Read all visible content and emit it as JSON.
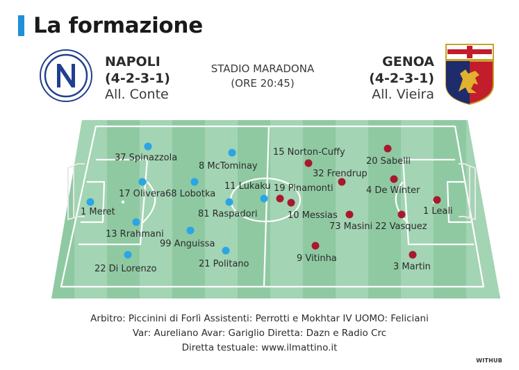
{
  "header": {
    "title": "La formazione",
    "accent": "#1e90d8"
  },
  "home": {
    "name": "NAPOLI",
    "formation": "(4-2-3-1)",
    "coach": "All. Conte",
    "dot_color": "#2aa5e6"
  },
  "away": {
    "name": "GENOA",
    "formation": "(4-2-3-1)",
    "coach": "All. Vieira",
    "dot_color": "#a8192e"
  },
  "venue": {
    "stadium": "STADIO MARADONA",
    "time": "(ORE 20:45)"
  },
  "home_players": [
    "1 Meret",
    "37 Spinazzola",
    "17 Olivera",
    "13 Rrahmani",
    "22 Di Lorenzo",
    "68 Lobotka",
    "99 Anguissa",
    "8 McTominay",
    "81 Raspadori",
    "21 Politano",
    "11 Lukaku"
  ],
  "away_players": [
    "1 Leali",
    "20 Sabelli",
    "4 De Winter",
    "22 Vasquez",
    "3 Martin",
    "32 Frendrup",
    "73 Masini",
    "15 Norton-Cuffy",
    "10 Messias",
    "9 Vitinha",
    "19 Pinamonti"
  ],
  "footer": {
    "line1": "Arbitro: Piccinini di Forlì Assistenti: Perrotti e Mokhtar IV UOMO: Feliciani",
    "line2": "Var: Aureliano Avar: Gariglio Diretta: Dazn e Radio Crc",
    "line3": "Diretta testuale: www.ilmattino.it"
  },
  "brand": "WITHUB",
  "crests": {
    "home_icon": "napoli-crest-icon",
    "away_icon": "genoa-crest-icon"
  }
}
